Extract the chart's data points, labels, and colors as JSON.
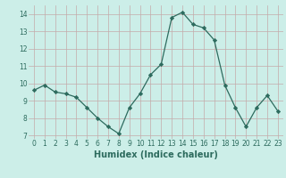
{
  "x": [
    0,
    1,
    2,
    3,
    4,
    5,
    6,
    7,
    8,
    9,
    10,
    11,
    12,
    13,
    14,
    15,
    16,
    17,
    18,
    19,
    20,
    21,
    22,
    23
  ],
  "y": [
    9.6,
    9.9,
    9.5,
    9.4,
    9.2,
    8.6,
    8.0,
    7.5,
    7.1,
    8.6,
    9.4,
    10.5,
    11.1,
    13.8,
    14.1,
    13.4,
    13.2,
    12.5,
    9.9,
    8.6,
    7.5,
    8.6,
    9.3,
    8.4
  ],
  "xlabel": "Humidex (Indice chaleur)",
  "ylim": [
    6.8,
    14.5
  ],
  "xlim": [
    -0.5,
    23.5
  ],
  "yticks": [
    7,
    8,
    9,
    10,
    11,
    12,
    13,
    14
  ],
  "xticks": [
    0,
    1,
    2,
    3,
    4,
    5,
    6,
    7,
    8,
    9,
    10,
    11,
    12,
    13,
    14,
    15,
    16,
    17,
    18,
    19,
    20,
    21,
    22,
    23
  ],
  "line_color": "#2d6b5e",
  "marker": "D",
  "marker_size": 2.2,
  "bg_color": "#cceee8",
  "grid_color_major": "#c4aaaa",
  "grid_color_minor": "#c4aaaa",
  "xlabel_fontsize": 7,
  "tick_fontsize": 5.5
}
